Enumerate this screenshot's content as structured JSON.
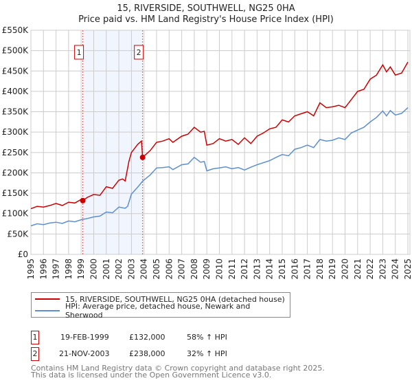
{
  "chart_data": {
    "type": "line",
    "title": "15, RIVERSIDE, SOUTHWELL, NG25 0HA",
    "subtitle": "Price paid vs. HM Land Registry's House Price Index (HPI)",
    "xlim": [
      1995,
      2025.2
    ],
    "ylim": [
      0,
      550000
    ],
    "grid": true,
    "yticks": [
      "£0",
      "£50K",
      "£100K",
      "£150K",
      "£200K",
      "£250K",
      "£300K",
      "£350K",
      "£400K",
      "£450K",
      "£500K",
      "£550K"
    ],
    "xticks": [
      "1995",
      "1996",
      "1997",
      "1998",
      "1999",
      "2000",
      "2001",
      "2002",
      "2003",
      "2004",
      "2005",
      "2006",
      "2007",
      "2008",
      "2009",
      "2010",
      "2011",
      "2012",
      "2013",
      "2014",
      "2015",
      "2016",
      "2017",
      "2018",
      "2019",
      "2020",
      "2021",
      "2022",
      "2023",
      "2024",
      "2025"
    ],
    "series": [
      {
        "name": "15, RIVERSIDE, SOUTHWELL, NG25 0HA (detached house)",
        "color": "#cc0000",
        "x": [
          1995,
          1995.5,
          1996,
          1996.5,
          1997,
          1997.5,
          1998,
          1998.5,
          1999,
          1999.13,
          1999.5,
          2000,
          2000.5,
          2001,
          2001.5,
          2002,
          2002.3,
          2002.5,
          2002.8,
          2003,
          2003.5,
          2003.8,
          2003.89,
          2004.5,
          2005,
          2005.5,
          2006,
          2006.3,
          2007,
          2007.5,
          2008,
          2008.5,
          2008.8,
          2009,
          2009.5,
          2010,
          2010.5,
          2011,
          2011.5,
          2012,
          2012.5,
          2013,
          2013.5,
          2014,
          2014.5,
          2015,
          2015.5,
          2016,
          2016.5,
          2017,
          2017.5,
          2018,
          2018.5,
          2019,
          2019.5,
          2020,
          2020.5,
          2021,
          2021.5,
          2022,
          2022.5,
          2023,
          2023.3,
          2023.6,
          2024,
          2024.5,
          2025
        ],
        "y": [
          112000,
          118000,
          116000,
          120000,
          125000,
          120000,
          128000,
          126000,
          135000,
          132000,
          140000,
          147000,
          145000,
          166000,
          162000,
          182000,
          185000,
          180000,
          228000,
          250000,
          270000,
          278000,
          238000,
          255000,
          275000,
          278000,
          284000,
          275000,
          290000,
          295000,
          312000,
          300000,
          302000,
          268000,
          272000,
          284000,
          278000,
          282000,
          270000,
          286000,
          272000,
          290000,
          298000,
          308000,
          312000,
          330000,
          325000,
          340000,
          345000,
          350000,
          340000,
          372000,
          360000,
          362000,
          366000,
          360000,
          380000,
          400000,
          405000,
          430000,
          440000,
          465000,
          448000,
          460000,
          440000,
          445000,
          472000
        ]
      },
      {
        "name": "HPI: Average price, detached house, Newark and Sherwood",
        "color": "#5b8fd0",
        "x": [
          1995,
          1995.5,
          1996,
          1996.5,
          1997,
          1997.5,
          1998,
          1998.5,
          1999,
          1999.5,
          2000,
          2000.5,
          2001,
          2001.5,
          2002,
          2002.5,
          2002.7,
          2003,
          2003.5,
          2003.9,
          2004.5,
          2005,
          2005.5,
          2006,
          2006.3,
          2007,
          2007.5,
          2008,
          2008.5,
          2008.8,
          2009,
          2009.5,
          2010,
          2010.5,
          2011,
          2011.5,
          2012,
          2012.5,
          2013,
          2013.5,
          2014,
          2014.5,
          2015,
          2015.5,
          2016,
          2016.5,
          2017,
          2017.5,
          2018,
          2018.5,
          2019,
          2019.5,
          2020,
          2020.5,
          2021,
          2021.5,
          2022,
          2022.5,
          2023,
          2023.3,
          2023.6,
          2024,
          2024.5,
          2025
        ],
        "y": [
          70000,
          75000,
          73000,
          77000,
          79000,
          76000,
          82000,
          80000,
          85000,
          88000,
          92000,
          94000,
          104000,
          102000,
          116000,
          113000,
          118000,
          148000,
          165000,
          180000,
          195000,
          212000,
          213000,
          215000,
          208000,
          220000,
          222000,
          238000,
          226000,
          228000,
          205000,
          210000,
          212000,
          215000,
          210000,
          213000,
          207000,
          214000,
          220000,
          225000,
          230000,
          238000,
          245000,
          242000,
          258000,
          262000,
          268000,
          262000,
          282000,
          278000,
          280000,
          286000,
          282000,
          298000,
          305000,
          312000,
          325000,
          336000,
          352000,
          340000,
          353000,
          342000,
          346000,
          360000
        ]
      }
    ],
    "sales": [
      {
        "label": "1",
        "x": 1999.13,
        "y": 132000
      },
      {
        "label": "2",
        "x": 2003.89,
        "y": 238000
      }
    ]
  },
  "legend": [
    "15, RIVERSIDE, SOUTHWELL, NG25 0HA (detached house)",
    "HPI: Average price, detached house, Newark and Sherwood"
  ],
  "transactions": [
    {
      "num": "1",
      "date": "19-FEB-1999",
      "price": "£132,000",
      "hpi": "58% ↑ HPI"
    },
    {
      "num": "2",
      "date": "21-NOV-2003",
      "price": "£238,000",
      "hpi": "32% ↑ HPI"
    }
  ],
  "footer": [
    "Contains HM Land Registry data © Crown copyright and database right 2025.",
    "This data is licensed under the Open Government Licence v3.0."
  ]
}
